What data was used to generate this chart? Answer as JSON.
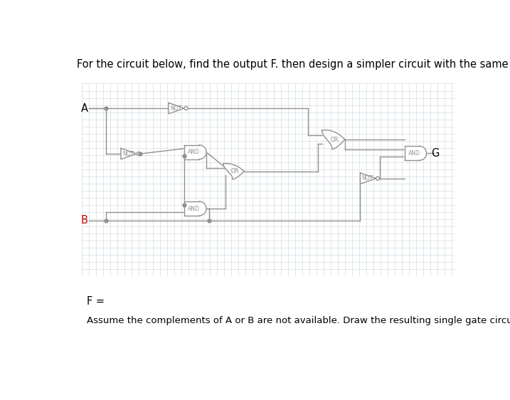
{
  "title": "For the circuit below, find the output F. then design a simpler circuit with the same output.",
  "title_fontsize": 10.5,
  "label_A": "A",
  "label_B": "B",
  "label_G": "G",
  "label_F": "F =",
  "label_bottom": "Assume the complements of A or B are not available. Draw the resulting single gate circuit for F",
  "gate_color": "#909090",
  "line_color": "#909090",
  "label_color_A": "#000000",
  "label_color_B": "#cc0000",
  "label_color_G": "#000000",
  "bg_color": "#ffffff",
  "grid_color": "#c8d4dc"
}
